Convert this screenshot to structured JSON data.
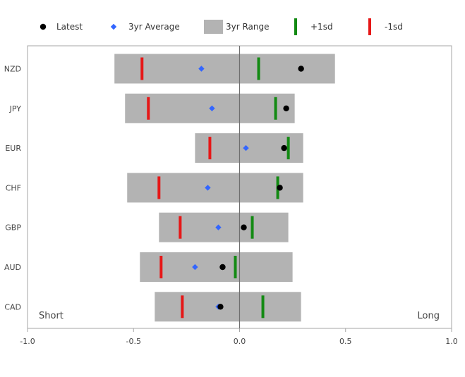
{
  "chart_data": {
    "type": "range-dot",
    "title": "",
    "xlabel": "",
    "ylabel": "",
    "xlim": [
      -1.0,
      1.0
    ],
    "x_ticks": [
      -1.0,
      -0.5,
      0.0,
      0.5,
      1.0
    ],
    "x_tick_labels": [
      "-1.0",
      "-0.5",
      "0.0",
      "0.5",
      "1.0"
    ],
    "grid": false,
    "legend_position": "top",
    "legend": [
      {
        "key": "latest",
        "label": "Latest",
        "color": "#000000",
        "marker": "circle"
      },
      {
        "key": "avg3yr",
        "label": "3yr Average",
        "color": "#3366ff",
        "marker": "diamond"
      },
      {
        "key": "range3yr",
        "label": "3yr Range",
        "color": "#b3b3b3",
        "marker": "box"
      },
      {
        "key": "plus1sd",
        "label": "+1sd",
        "color": "#138a13",
        "marker": "vbar"
      },
      {
        "key": "minus1sd",
        "label": "-1sd",
        "color": "#e61717",
        "marker": "vbar"
      }
    ],
    "annotations": {
      "left": "Short",
      "right": "Long"
    },
    "categories": [
      "NZD",
      "JPY",
      "EUR",
      "CHF",
      "GBP",
      "AUD",
      "CAD"
    ],
    "rows": [
      {
        "category": "NZD",
        "range_min": -0.59,
        "range_max": 0.45,
        "minus1sd": -0.46,
        "plus1sd": 0.09,
        "avg3yr": -0.18,
        "latest": 0.29
      },
      {
        "category": "JPY",
        "range_min": -0.54,
        "range_max": 0.26,
        "minus1sd": -0.43,
        "plus1sd": 0.17,
        "avg3yr": -0.13,
        "latest": 0.22
      },
      {
        "category": "EUR",
        "range_min": -0.21,
        "range_max": 0.3,
        "minus1sd": -0.14,
        "plus1sd": 0.23,
        "avg3yr": 0.03,
        "latest": 0.21
      },
      {
        "category": "CHF",
        "range_min": -0.53,
        "range_max": 0.3,
        "minus1sd": -0.38,
        "plus1sd": 0.18,
        "avg3yr": -0.15,
        "latest": 0.19
      },
      {
        "category": "GBP",
        "range_min": -0.38,
        "range_max": 0.23,
        "minus1sd": -0.28,
        "plus1sd": 0.06,
        "avg3yr": -0.1,
        "latest": 0.02
      },
      {
        "category": "AUD",
        "range_min": -0.47,
        "range_max": 0.25,
        "minus1sd": -0.37,
        "plus1sd": -0.02,
        "avg3yr": -0.21,
        "latest": -0.08
      },
      {
        "category": "CAD",
        "range_min": -0.4,
        "range_max": 0.29,
        "minus1sd": -0.27,
        "plus1sd": 0.11,
        "avg3yr": -0.1,
        "latest": -0.09
      }
    ]
  }
}
